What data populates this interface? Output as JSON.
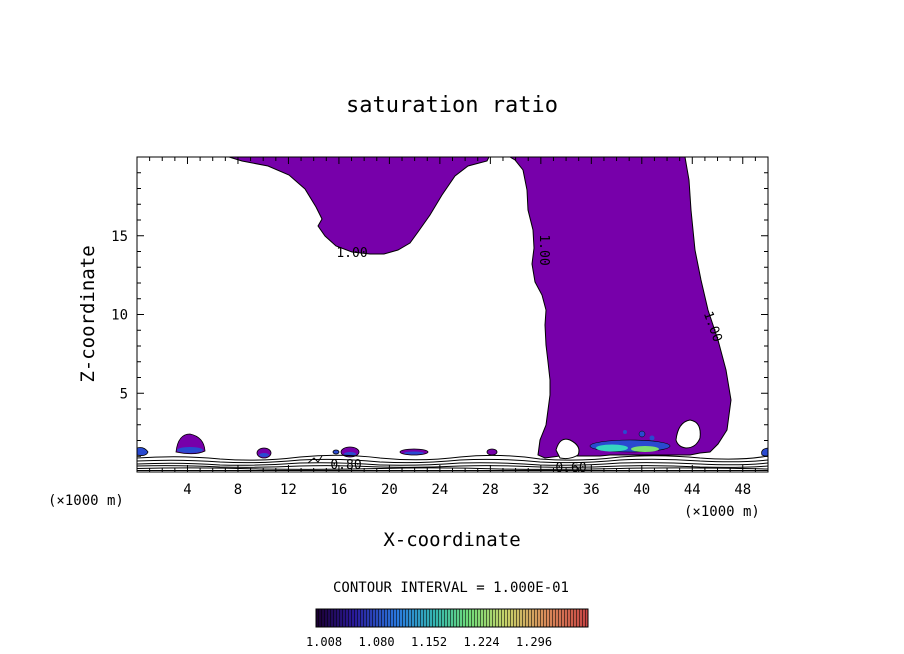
{
  "chart_data": {
    "type": "contour",
    "title": "saturation ratio",
    "xlabel": "X-coordinate",
    "ylabel": "Z-coordinate",
    "x_unit": "(×1000 m)",
    "y_unit": "(×1000 m)",
    "xlim": [
      0,
      50
    ],
    "ylim": [
      0,
      20
    ],
    "x_ticks": [
      4,
      8,
      12,
      16,
      20,
      24,
      28,
      32,
      36,
      40,
      44,
      48
    ],
    "y_ticks": [
      5,
      10,
      15
    ],
    "contour_interval_text": "CONTOUR INTERVAL = 1.000E-01",
    "contour_labels": [
      "1.00",
      "1.00",
      "1.00",
      "0.80",
      "0.60"
    ],
    "colorbar": {
      "ticks": [
        "1.008",
        "1.080",
        "1.152",
        "1.224",
        "1.296"
      ],
      "colors": [
        "#1b0030",
        "#2a1a9a",
        "#2a7adf",
        "#35b7b0",
        "#6fdc7a",
        "#c8d26a",
        "#d98a5a",
        "#c74444"
      ]
    },
    "fill_color": "#7700aa",
    "regions": [
      {
        "name": "upper-left cloud",
        "x": [
          7.5,
          27.5
        ],
        "z": [
          13.6,
          19.6
        ]
      },
      {
        "name": "right column cloud",
        "x": [
          30.5,
          47
        ],
        "z": [
          1.0,
          19.6
        ]
      }
    ]
  }
}
